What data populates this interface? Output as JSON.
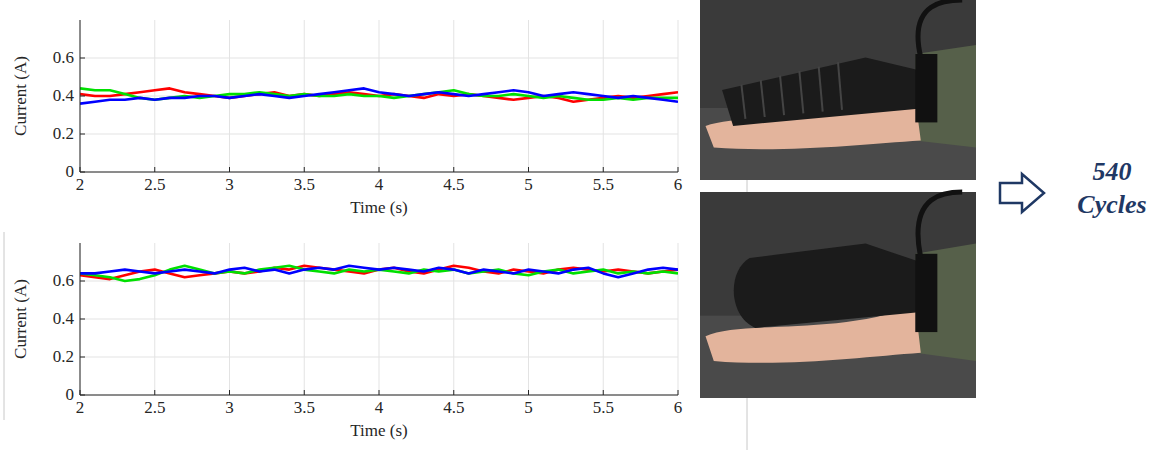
{
  "chart_data": [
    {
      "type": "line",
      "x_label": "Time (s)",
      "y_label": "Current (A)",
      "x": [
        2,
        2.1,
        2.2,
        2.3,
        2.4,
        2.5,
        2.6,
        2.7,
        2.8,
        2.9,
        3,
        3.1,
        3.2,
        3.3,
        3.4,
        3.5,
        3.6,
        3.7,
        3.8,
        3.9,
        4,
        4.1,
        4.2,
        4.3,
        4.4,
        4.5,
        4.6,
        4.7,
        4.8,
        4.9,
        5,
        5.1,
        5.2,
        5.3,
        5.4,
        5.5,
        5.6,
        5.7,
        5.8,
        5.9,
        6
      ],
      "series": [
        {
          "color": "#ff0000",
          "values": [
            0.41,
            0.4,
            0.4,
            0.41,
            0.42,
            0.43,
            0.44,
            0.42,
            0.41,
            0.4,
            0.39,
            0.4,
            0.41,
            0.42,
            0.4,
            0.41,
            0.4,
            0.41,
            0.42,
            0.41,
            0.4,
            0.41,
            0.4,
            0.39,
            0.41,
            0.4,
            0.41,
            0.4,
            0.39,
            0.38,
            0.39,
            0.4,
            0.39,
            0.37,
            0.38,
            0.39,
            0.4,
            0.39,
            0.4,
            0.41,
            0.42
          ]
        },
        {
          "color": "#00e000",
          "values": [
            0.44,
            0.43,
            0.43,
            0.41,
            0.39,
            0.38,
            0.39,
            0.4,
            0.39,
            0.4,
            0.41,
            0.41,
            0.42,
            0.41,
            0.4,
            0.41,
            0.4,
            0.4,
            0.41,
            0.4,
            0.4,
            0.39,
            0.4,
            0.41,
            0.42,
            0.43,
            0.41,
            0.4,
            0.4,
            0.41,
            0.4,
            0.39,
            0.4,
            0.39,
            0.38,
            0.38,
            0.39,
            0.38,
            0.39,
            0.39,
            0.39
          ]
        },
        {
          "color": "#0000ff",
          "values": [
            0.36,
            0.37,
            0.38,
            0.38,
            0.39,
            0.38,
            0.39,
            0.39,
            0.4,
            0.4,
            0.39,
            0.4,
            0.41,
            0.4,
            0.39,
            0.4,
            0.41,
            0.42,
            0.43,
            0.44,
            0.42,
            0.41,
            0.4,
            0.41,
            0.42,
            0.41,
            0.4,
            0.41,
            0.42,
            0.43,
            0.42,
            0.4,
            0.41,
            0.42,
            0.41,
            0.4,
            0.39,
            0.4,
            0.39,
            0.38,
            0.37
          ]
        }
      ],
      "xlim": [
        2,
        6
      ],
      "ylim": [
        0,
        0.8
      ],
      "xticks": [
        2,
        2.5,
        3,
        3.5,
        4,
        4.5,
        5,
        5.5,
        6
      ],
      "yticks": [
        0,
        0.2,
        0.4,
        0.6
      ],
      "grid": true
    },
    {
      "type": "line",
      "x_label": "Time (s)",
      "y_label": "Current (A)",
      "x": [
        2,
        2.1,
        2.2,
        2.3,
        2.4,
        2.5,
        2.6,
        2.7,
        2.8,
        2.9,
        3,
        3.1,
        3.2,
        3.3,
        3.4,
        3.5,
        3.6,
        3.7,
        3.8,
        3.9,
        4,
        4.1,
        4.2,
        4.3,
        4.4,
        4.5,
        4.6,
        4.7,
        4.8,
        4.9,
        5,
        5.1,
        5.2,
        5.3,
        5.4,
        5.5,
        5.6,
        5.7,
        5.8,
        5.9,
        6
      ],
      "series": [
        {
          "color": "#ff0000",
          "values": [
            0.63,
            0.62,
            0.61,
            0.63,
            0.65,
            0.66,
            0.64,
            0.62,
            0.63,
            0.64,
            0.65,
            0.64,
            0.65,
            0.67,
            0.66,
            0.68,
            0.67,
            0.66,
            0.65,
            0.64,
            0.66,
            0.67,
            0.65,
            0.64,
            0.66,
            0.68,
            0.67,
            0.65,
            0.64,
            0.66,
            0.65,
            0.64,
            0.66,
            0.67,
            0.66,
            0.65,
            0.66,
            0.65,
            0.64,
            0.65,
            0.66
          ]
        },
        {
          "color": "#00e000",
          "values": [
            0.64,
            0.63,
            0.62,
            0.6,
            0.61,
            0.63,
            0.66,
            0.68,
            0.66,
            0.64,
            0.65,
            0.64,
            0.66,
            0.67,
            0.68,
            0.66,
            0.65,
            0.64,
            0.66,
            0.65,
            0.66,
            0.65,
            0.64,
            0.66,
            0.65,
            0.66,
            0.64,
            0.65,
            0.66,
            0.64,
            0.63,
            0.65,
            0.66,
            0.64,
            0.65,
            0.66,
            0.64,
            0.65,
            0.64,
            0.65,
            0.64
          ]
        },
        {
          "color": "#0000ff",
          "values": [
            0.64,
            0.64,
            0.65,
            0.66,
            0.65,
            0.64,
            0.65,
            0.66,
            0.65,
            0.64,
            0.66,
            0.67,
            0.65,
            0.66,
            0.64,
            0.66,
            0.67,
            0.66,
            0.68,
            0.67,
            0.66,
            0.67,
            0.66,
            0.65,
            0.67,
            0.66,
            0.64,
            0.66,
            0.65,
            0.64,
            0.66,
            0.65,
            0.64,
            0.66,
            0.67,
            0.64,
            0.62,
            0.64,
            0.66,
            0.67,
            0.66
          ]
        }
      ],
      "xlim": [
        2,
        6
      ],
      "ylim": [
        0,
        0.8
      ],
      "xticks": [
        2,
        2.5,
        3,
        3.5,
        4,
        4.5,
        5,
        5.5,
        6
      ],
      "yticks": [
        0,
        0.2,
        0.4,
        0.6
      ],
      "grid": true
    }
  ],
  "callout": {
    "value": 540,
    "label": "Cycles"
  }
}
